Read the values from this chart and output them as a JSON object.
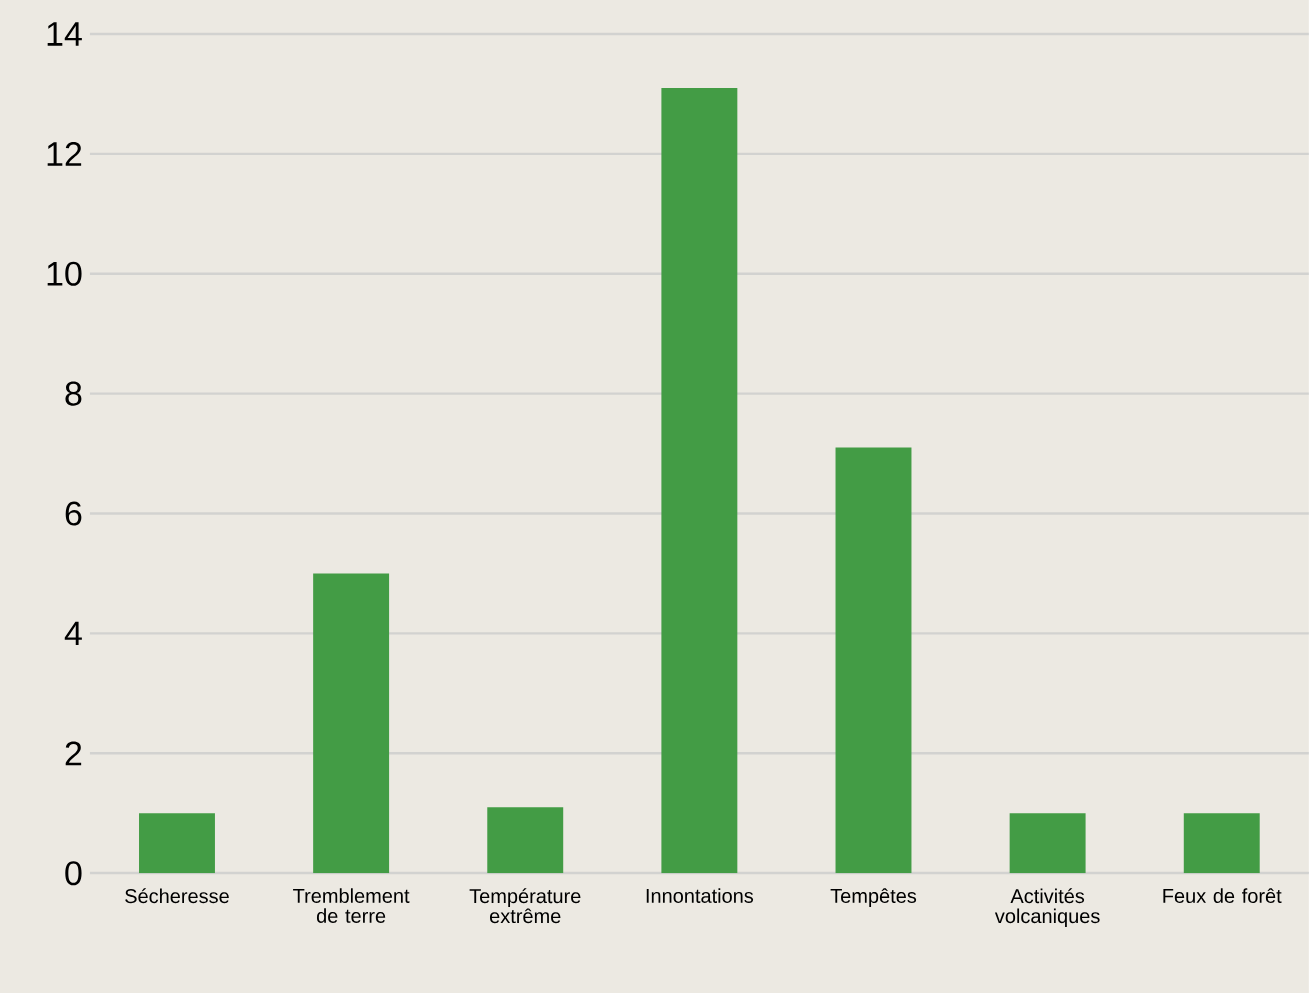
{
  "chart_data": {
    "type": "bar",
    "categories": [
      "Sécheresse",
      "Tremblement de terre",
      "Température extrême",
      "Innontations",
      "Tempêtes",
      "Activités volcaniques",
      "Feux de forêt"
    ],
    "values": [
      1,
      5,
      1.1,
      13.1,
      7.1,
      1,
      1
    ],
    "color": "#439c45",
    "ylim": [
      0,
      14
    ],
    "yticks": [
      0,
      2,
      4,
      6,
      8,
      10,
      12,
      14
    ],
    "grid": "y"
  }
}
